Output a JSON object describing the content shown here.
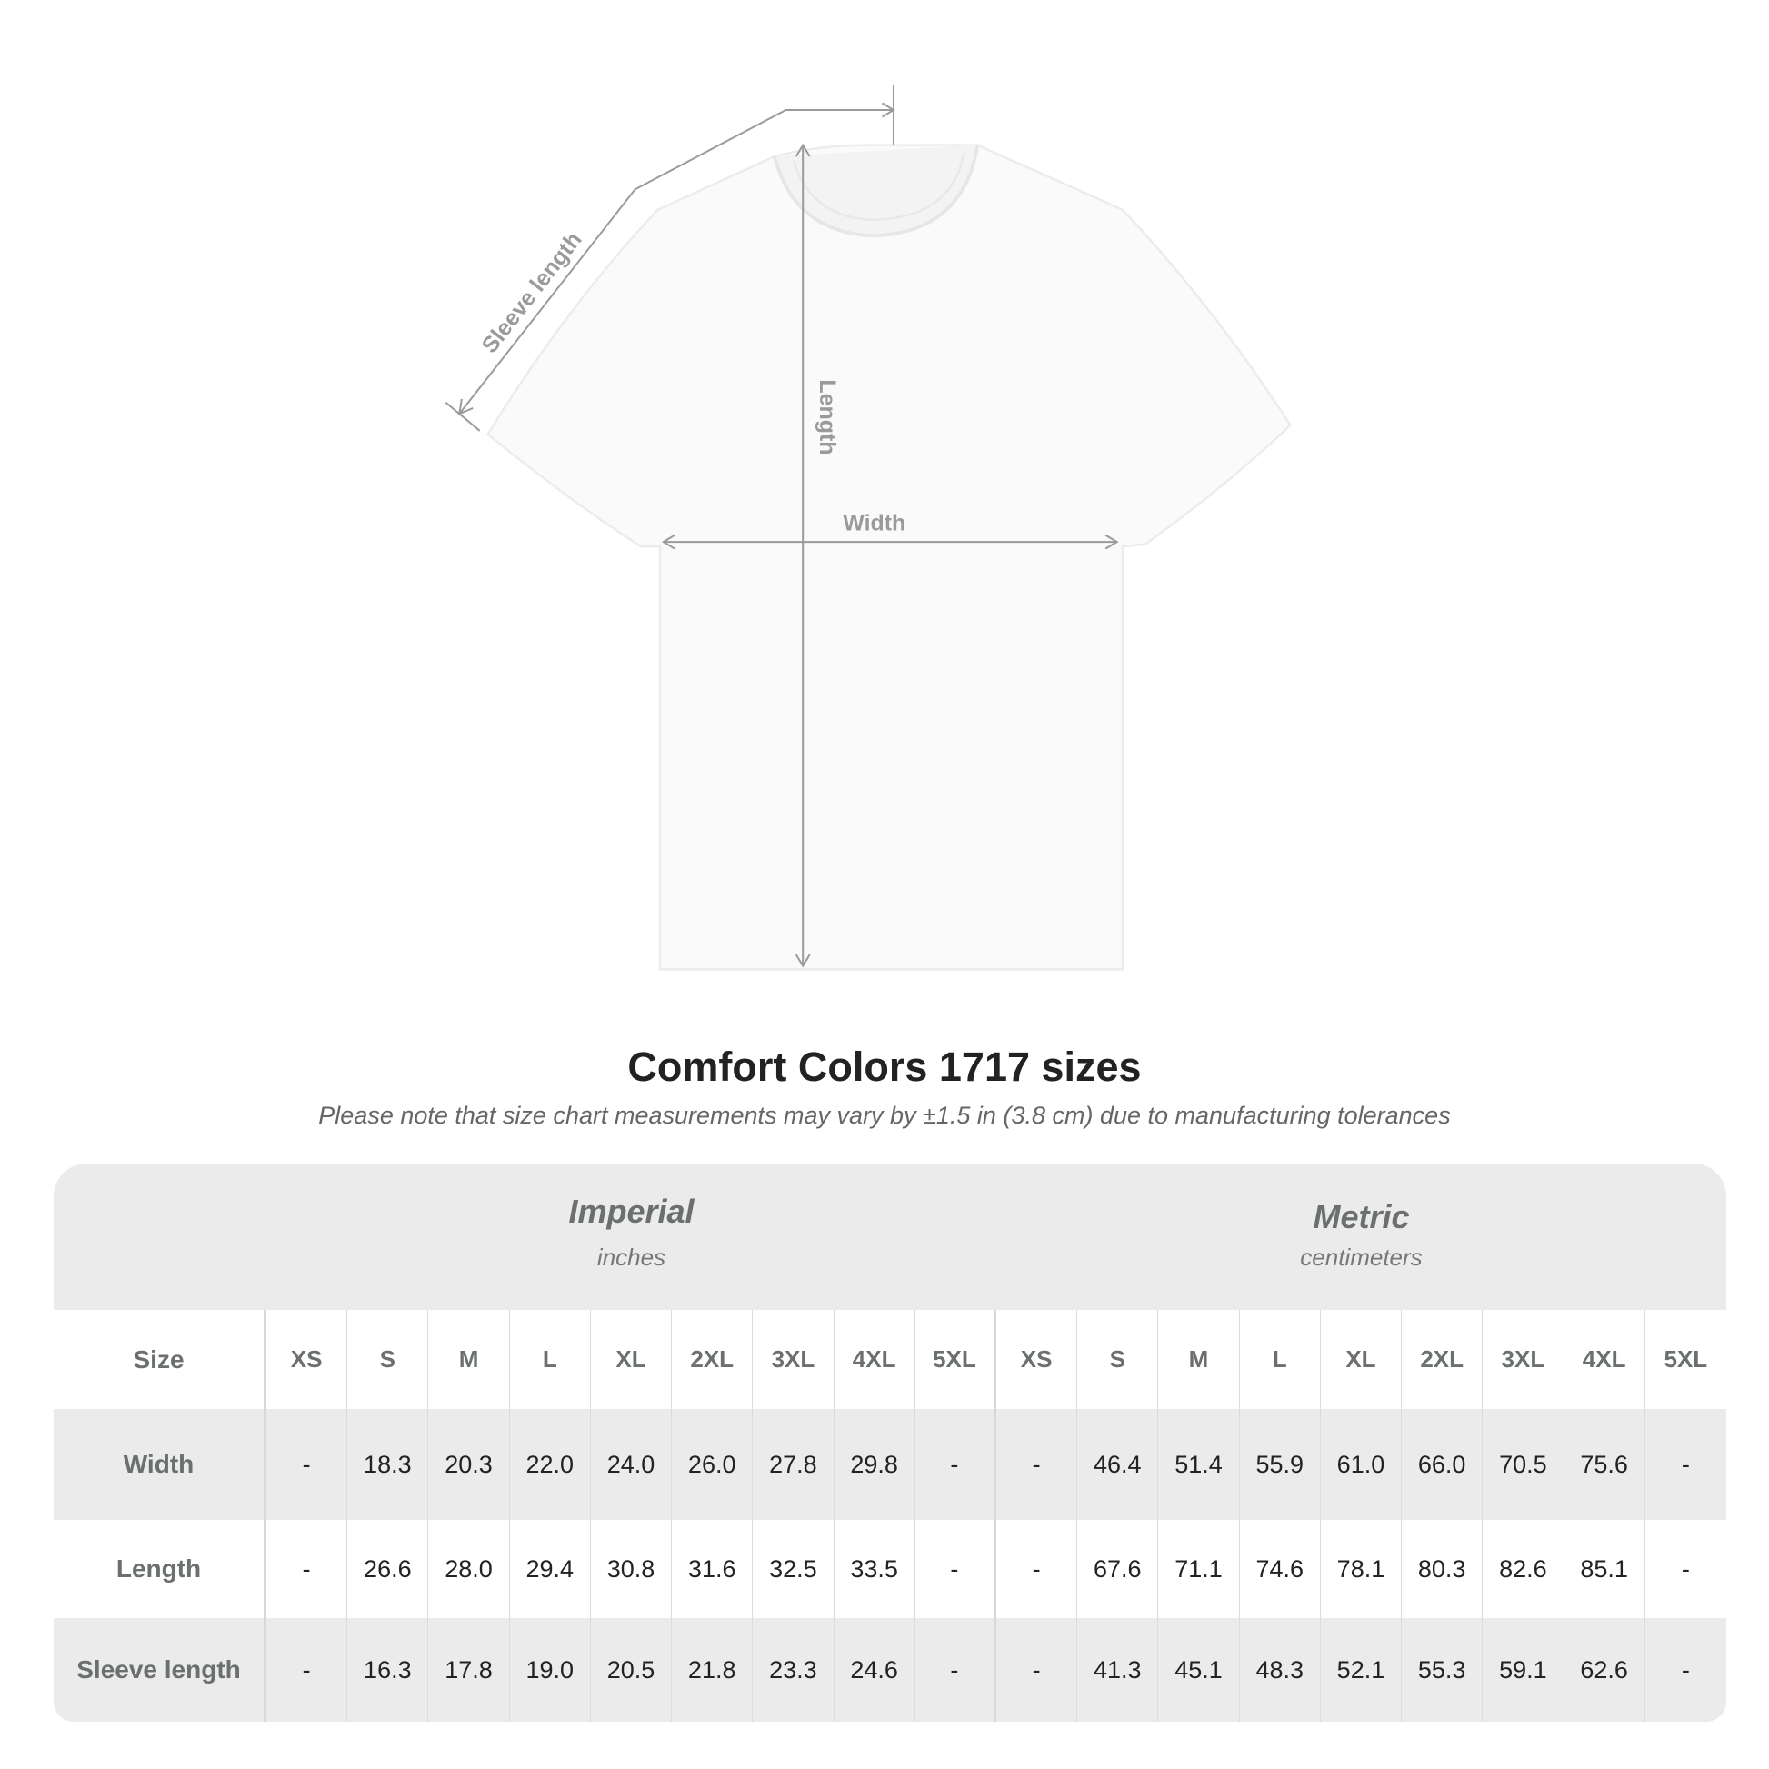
{
  "diagram": {
    "labels": {
      "sleeve": "Sleeve length",
      "length": "Length",
      "width": "Width"
    },
    "line_color": "#9a9a9a"
  },
  "title": "Comfort Colors 1717 sizes",
  "subtitle": "Please note that size chart measurements may vary by ±1.5 in (3.8 cm) due to manufacturing tolerances",
  "chart_data": {
    "type": "table",
    "systems": [
      {
        "name": "Imperial",
        "unit": "inches"
      },
      {
        "name": "Metric",
        "unit": "centimeters"
      }
    ],
    "size_label": "Size",
    "sizes": [
      "XS",
      "S",
      "M",
      "L",
      "XL",
      "2XL",
      "3XL",
      "4XL",
      "5XL"
    ],
    "rows": [
      {
        "label": "Width",
        "imperial": [
          "-",
          "18.3",
          "20.3",
          "22.0",
          "24.0",
          "26.0",
          "27.8",
          "29.8",
          "-"
        ],
        "metric": [
          "-",
          "46.4",
          "51.4",
          "55.9",
          "61.0",
          "66.0",
          "70.5",
          "75.6",
          "-"
        ]
      },
      {
        "label": "Length",
        "imperial": [
          "-",
          "26.6",
          "28.0",
          "29.4",
          "30.8",
          "31.6",
          "32.5",
          "33.5",
          "-"
        ],
        "metric": [
          "-",
          "67.6",
          "71.1",
          "74.6",
          "78.1",
          "80.3",
          "82.6",
          "85.1",
          "-"
        ]
      },
      {
        "label": "Sleeve length",
        "imperial": [
          "-",
          "16.3",
          "17.8",
          "19.0",
          "20.5",
          "21.8",
          "23.3",
          "24.6",
          "-"
        ],
        "metric": [
          "-",
          "41.3",
          "45.1",
          "48.3",
          "52.1",
          "55.3",
          "59.1",
          "62.6",
          "-"
        ]
      }
    ],
    "header_bg": "#ebebeb",
    "label_color": "#6b6f70"
  }
}
